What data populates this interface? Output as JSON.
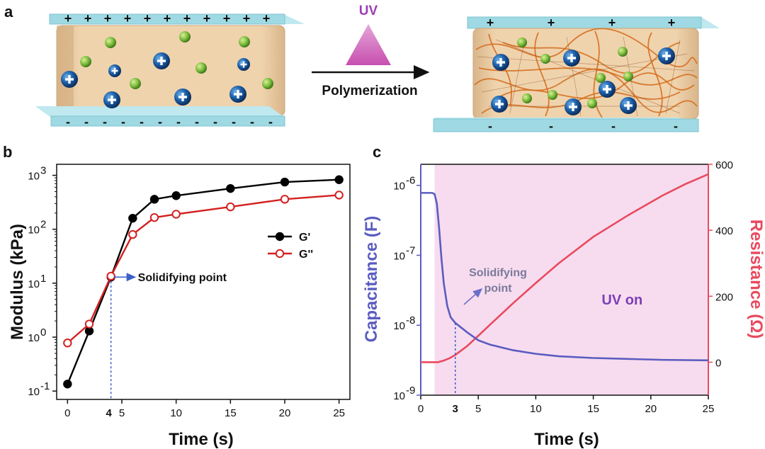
{
  "panels": {
    "a": "a",
    "b": "b",
    "c": "c"
  },
  "schematic": {
    "uv_label": "UV",
    "process_label": "Polymerization",
    "plus_sign": "+",
    "minus_sign": "-"
  },
  "colors": {
    "uv_purple": "#9b3fb5",
    "electrode": "#9fd9e3",
    "gel": "#e9c9a0",
    "cation": "#1a5aa0",
    "anion": "#7cbc3c",
    "polymer": "#d46a1a",
    "g_prime": "#000000",
    "g_double_prime": "#d42020",
    "capacitance": "#5b5cc0",
    "resistance": "#e84a5f",
    "uv_region": "#f7dcef"
  },
  "chart_data": [
    {
      "type": "line",
      "panel": "b",
      "xlabel": "Time (s)",
      "ylabel": "Modulus (kPa)",
      "yscale": "log",
      "xlim": [
        -1,
        26
      ],
      "ylim": [
        0.07,
        1600
      ],
      "x_ticks": [
        "0",
        "5",
        "10",
        "15",
        "20",
        "25"
      ],
      "y_ticks": [
        "10",
        "10",
        "10",
        "10",
        "10"
      ],
      "y_tick_exponents": [
        "-1",
        "0",
        "1",
        "2",
        "3"
      ],
      "series": [
        {
          "name": "G'",
          "x": [
            0,
            2,
            4,
            6,
            8,
            10,
            15,
            20,
            25
          ],
          "values": [
            0.135,
            1.3,
            13,
            160,
            360,
            420,
            570,
            750,
            830
          ]
        },
        {
          "name": "G''",
          "x": [
            0,
            2,
            4,
            6,
            8,
            10,
            15,
            20,
            25
          ],
          "values": [
            0.78,
            1.75,
            13.5,
            80,
            165,
            190,
            260,
            360,
            430
          ]
        }
      ],
      "legend": "right",
      "annotations": [
        {
          "text": "Solidifying point",
          "x": 4,
          "y": 13
        },
        {
          "text": "4",
          "x": 4
        }
      ]
    },
    {
      "type": "line",
      "panel": "c",
      "xlabel": "Time (s)",
      "ylabel_left": "Capacitance (F)",
      "ylabel_right": "Resistance (Ω)",
      "yscale_left": "log",
      "xlim": [
        0,
        25
      ],
      "ylim_left": [
        1e-09,
        2e-06
      ],
      "ylim_right": [
        -100,
        600
      ],
      "x_ticks": [
        "0",
        "5",
        "10",
        "15",
        "20",
        "25"
      ],
      "y_left_ticks": [
        "10",
        "10",
        "10",
        "10"
      ],
      "y_left_tick_exponents": [
        "-9",
        "-8",
        "-7",
        "-6"
      ],
      "y_right_ticks": [
        "0",
        "200",
        "400",
        "600"
      ],
      "series": [
        {
          "name": "Capacitance",
          "axis": "left",
          "x": [
            0,
            0.5,
            1.0,
            1.2,
            1.4,
            1.6,
            1.8,
            2.0,
            2.3,
            2.6,
            3.0,
            4.0,
            5.0,
            6.0,
            8.0,
            10.0,
            12.0,
            15.0,
            18.0,
            21.0,
            25.0
          ],
          "values": [
            7.8e-07,
            7.8e-07,
            7.8e-07,
            7.5e-07,
            5.5e-07,
            2.4e-07,
            9e-08,
            4e-08,
            1.9e-08,
            1.3e-08,
            1.08e-08,
            8e-09,
            6.1e-09,
            5.3e-09,
            4.4e-09,
            3.9e-09,
            3.6e-09,
            3.4e-09,
            3.3e-09,
            3.2e-09,
            3.15e-09
          ]
        },
        {
          "name": "Resistance",
          "axis": "right",
          "x": [
            0,
            1.5,
            2.0,
            2.5,
            3.0,
            4.0,
            5.0,
            6.0,
            8.0,
            10.0,
            12.0,
            15.0,
            18.0,
            21.0,
            23.0,
            25.0
          ],
          "values": [
            0,
            0,
            5,
            12,
            22,
            48,
            80,
            113,
            178,
            240,
            300,
            380,
            445,
            505,
            540,
            570
          ]
        }
      ],
      "uv_region": {
        "x_start": 1.2,
        "x_end": 25
      },
      "annotations": [
        {
          "text": "Solidifying",
          "x": 3
        },
        {
          "text": "point",
          "x": 3
        },
        {
          "text": "UV on",
          "x": 18
        },
        {
          "text": "3",
          "x": 3
        }
      ]
    }
  ]
}
